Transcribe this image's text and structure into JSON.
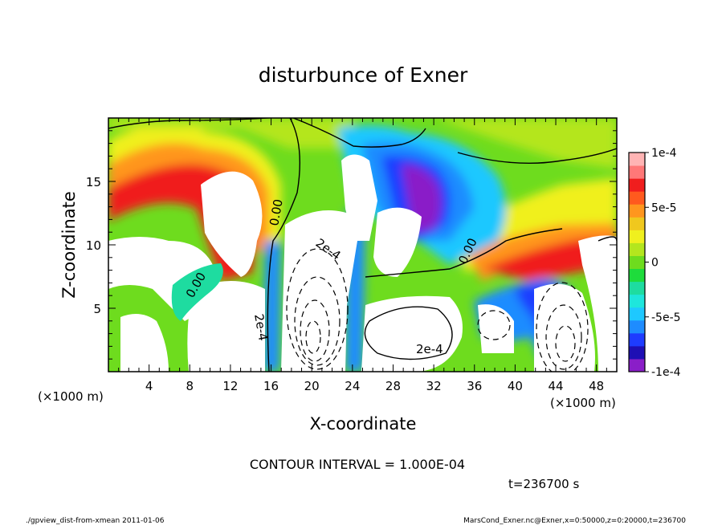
{
  "chart_data": {
    "type": "heatmap",
    "title": "disturbunce of Exner",
    "xlabel": "X-coordinate",
    "ylabel": "Z-coordinate",
    "x_unit_left": "(×1000 m)",
    "x_unit_right": "(×1000 m)",
    "xlim": [
      0,
      50
    ],
    "ylim": [
      0,
      20
    ],
    "x_ticks": [
      4,
      8,
      12,
      16,
      20,
      24,
      28,
      32,
      36,
      40,
      44,
      48
    ],
    "y_ticks": [
      5,
      10,
      15
    ],
    "colorbar": {
      "min": -0.0001,
      "max": 0.0001,
      "tick_values": [
        0.0001,
        5e-05,
        0,
        -5e-05,
        -0.0001
      ],
      "tick_labels": [
        "1e-4",
        "5e-5",
        "0",
        "-5e-5",
        "-1e-4"
      ],
      "colors": [
        "#8a1ec8",
        "#1e0fb4",
        "#1e3cff",
        "#1e8cff",
        "#1ec8ff",
        "#1ee6dc",
        "#1edca0",
        "#1edc3c",
        "#6edc1e",
        "#b4e61e",
        "#f0f01e",
        "#f0c81e",
        "#ff961e",
        "#ff5a1e",
        "#f01e1e",
        "#ff7878",
        "#ffb4b4"
      ]
    },
    "contour_labels": [
      "0.00",
      "2e-4",
      "2e-4",
      "2e-4",
      "0.00",
      "0.00"
    ],
    "contour_interval_label": "CONTOUR INTERVAL = 1.000E-04",
    "time_label": "t=236700 s"
  },
  "footer": {
    "left": "./gpview_dist-from-xmean  2011-01-06",
    "right": "MarsCond_Exner.nc@Exner,x=0:50000,z=0:20000,t=236700"
  }
}
